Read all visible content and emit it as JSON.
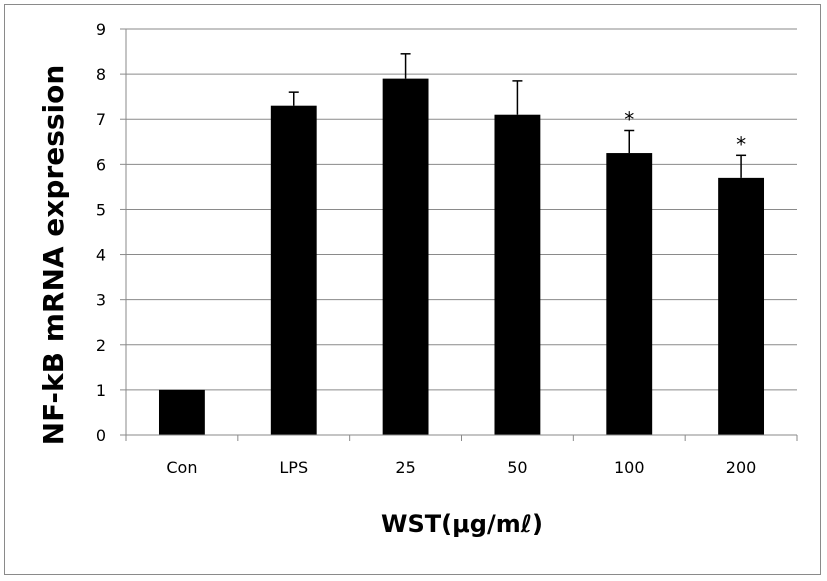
{
  "chart_data": {
    "type": "bar",
    "categories": [
      "Con",
      "LPS",
      "25",
      "50",
      "100",
      "200"
    ],
    "series": [
      {
        "values": [
          1,
          7.3,
          7.9,
          7.1,
          6.25,
          5.7
        ],
        "error": [
          0,
          0.3,
          0.55,
          0.75,
          0.5,
          0.5
        ],
        "color": "#000000"
      }
    ],
    "annotations": [
      "",
      "",
      "",
      "",
      "*",
      "*"
    ],
    "xlabel": "WST(μg/mℓ)",
    "ylabel": "NF-kB mRNA expression",
    "ylim": [
      0,
      9
    ],
    "yticks": [
      0,
      1,
      2,
      3,
      4,
      5,
      6,
      7,
      8,
      9
    ],
    "grid": true,
    "legend": "none"
  },
  "colors": {
    "bar": "#000000",
    "grid": "#8a8a8a",
    "axis": "#8a8a8a",
    "frame": "#8a8a8a"
  }
}
